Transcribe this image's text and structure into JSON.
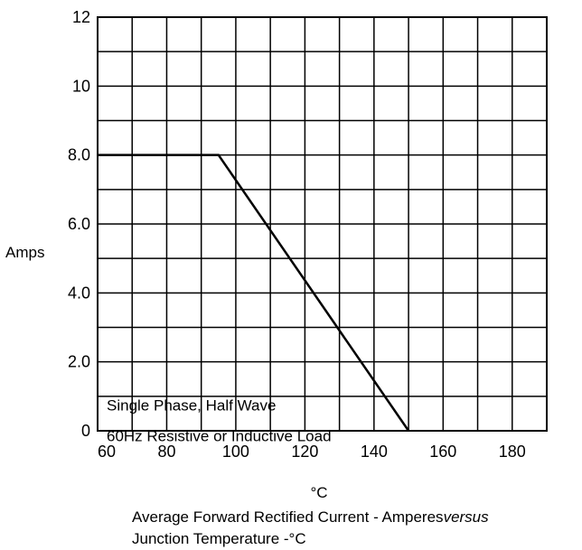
{
  "chart_data": {
    "type": "line",
    "title": "",
    "xlabel": "°C",
    "ylabel": "Amps",
    "xlim": [
      60,
      190
    ],
    "ylim": [
      0,
      12
    ],
    "x_ticks": [
      60,
      80,
      100,
      120,
      140,
      160,
      180
    ],
    "y_ticks": [
      {
        "value": 0,
        "label": "0"
      },
      {
        "value": 2,
        "label": "2.0"
      },
      {
        "value": 4,
        "label": "4.0"
      },
      {
        "value": 6,
        "label": "6.0"
      },
      {
        "value": 8,
        "label": "8.0"
      },
      {
        "value": 10,
        "label": "10"
      },
      {
        "value": 12,
        "label": "12"
      }
    ],
    "grid": true,
    "series": [
      {
        "x": [
          60,
          95,
          150
        ],
        "y": [
          8,
          8,
          0
        ]
      }
    ],
    "annotations": [
      "Single Phase, Half Wave",
      "60Hz Resistive or Inductive Load"
    ],
    "caption": {
      "line1_prefix": "Average Forward Rectified Current  -  Amperes",
      "line1_italic": "versus",
      "line2": "Junction Temperature  -°C"
    }
  }
}
